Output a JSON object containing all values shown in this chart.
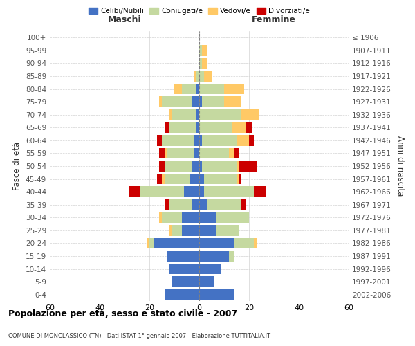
{
  "age_groups": [
    "0-4",
    "5-9",
    "10-14",
    "15-19",
    "20-24",
    "25-29",
    "30-34",
    "35-39",
    "40-44",
    "45-49",
    "50-54",
    "55-59",
    "60-64",
    "65-69",
    "70-74",
    "75-79",
    "80-84",
    "85-89",
    "90-94",
    "95-99",
    "100+"
  ],
  "birth_years": [
    "2002-2006",
    "1997-2001",
    "1992-1996",
    "1987-1991",
    "1982-1986",
    "1977-1981",
    "1972-1976",
    "1967-1971",
    "1962-1966",
    "1957-1961",
    "1952-1956",
    "1947-1951",
    "1942-1946",
    "1937-1941",
    "1932-1936",
    "1927-1931",
    "1922-1926",
    "1917-1921",
    "1912-1916",
    "1907-1911",
    "≤ 1906"
  ],
  "colors": {
    "celibi": "#4472c4",
    "coniugati": "#c5d9a0",
    "vedovi": "#ffc966",
    "divorziati": "#cc0000"
  },
  "maschi": {
    "celibi": [
      14,
      11,
      12,
      13,
      18,
      7,
      7,
      3,
      6,
      4,
      3,
      2,
      2,
      1,
      1,
      3,
      1,
      0,
      0,
      0,
      0
    ],
    "coniugati": [
      0,
      0,
      0,
      0,
      2,
      4,
      8,
      9,
      18,
      10,
      11,
      11,
      13,
      11,
      10,
      12,
      6,
      1,
      0,
      0,
      0
    ],
    "vedovi": [
      0,
      0,
      0,
      0,
      1,
      1,
      1,
      0,
      0,
      1,
      0,
      1,
      0,
      0,
      1,
      1,
      3,
      1,
      0,
      0,
      0
    ],
    "divorziati": [
      0,
      0,
      0,
      0,
      0,
      0,
      0,
      2,
      4,
      2,
      2,
      2,
      2,
      2,
      0,
      0,
      0,
      0,
      0,
      0,
      0
    ]
  },
  "femmine": {
    "celibi": [
      14,
      6,
      9,
      12,
      14,
      7,
      7,
      3,
      2,
      2,
      1,
      0,
      1,
      0,
      0,
      1,
      0,
      0,
      0,
      0,
      0
    ],
    "coniugati": [
      0,
      0,
      0,
      2,
      8,
      9,
      13,
      14,
      20,
      13,
      14,
      12,
      14,
      13,
      17,
      9,
      10,
      2,
      1,
      1,
      0
    ],
    "vedovi": [
      0,
      0,
      0,
      0,
      1,
      0,
      0,
      0,
      0,
      1,
      1,
      2,
      5,
      6,
      7,
      7,
      8,
      3,
      2,
      2,
      0
    ],
    "divorziati": [
      0,
      0,
      0,
      0,
      0,
      0,
      0,
      2,
      5,
      1,
      7,
      2,
      2,
      2,
      0,
      0,
      0,
      0,
      0,
      0,
      0
    ]
  },
  "title": "Popolazione per età, sesso e stato civile - 2007",
  "subtitle": "COMUNE DI MONCLASSICO (TN) - Dati ISTAT 1° gennaio 2007 - Elaborazione TUTTITALIA.IT",
  "ylabel_left": "Fasce di età",
  "ylabel_right": "Anni di nascita",
  "xlim": 60,
  "legend_labels": [
    "Celibi/Nubili",
    "Coniugati/e",
    "Vedovi/e",
    "Divorziati/e"
  ],
  "header_maschi": "Maschi",
  "header_femmine": "Femmine"
}
